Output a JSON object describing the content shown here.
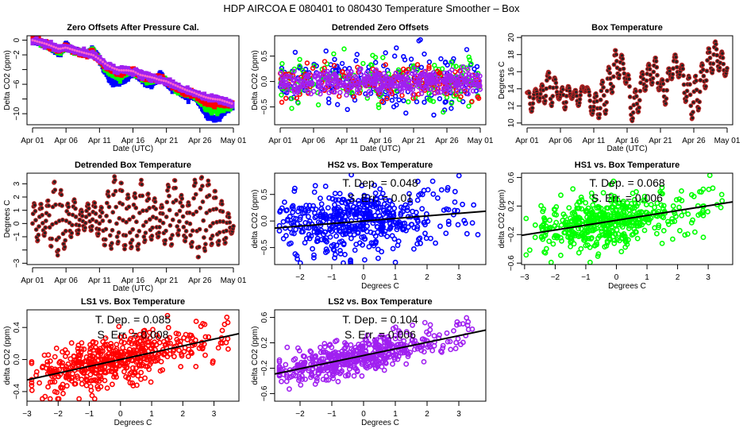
{
  "title": "HDP   AIRCOA E   080401 to 080430   Temperature Smoother – Box",
  "colors": {
    "HS2": "#0000ff",
    "HS1": "#00ff00",
    "LS1": "#ff0000",
    "LS2": "#a020f0",
    "box_temp": "#b22222",
    "fit_line": "#000000"
  },
  "chart_data": [
    {
      "id": "zero-offsets",
      "type": "line",
      "title": "Zero Offsets After Pressure Cal.",
      "xlabel": "Date (UTC)",
      "ylabel": "Delta CO2 (ppm)",
      "xticks": [
        "Apr 01",
        "Apr 06",
        "Apr 11",
        "Apr 16",
        "Apr 21",
        "Apr 26",
        "May 01"
      ],
      "xlim": [
        0,
        30
      ],
      "ylim": [
        -11.5,
        0.6
      ],
      "yticks": [
        0,
        -2,
        -4,
        -6,
        -8,
        -10
      ],
      "ytick_labels": [
        "0",
        "−2",
        "",
        "−6",
        "",
        "−10"
      ],
      "series": [
        {
          "name": "HS2",
          "days": [
            0,
            2,
            4,
            5,
            6,
            8,
            9,
            10,
            11,
            12,
            13,
            14,
            15,
            16,
            17,
            18,
            19,
            20,
            21,
            22,
            23,
            24,
            25,
            26,
            27,
            28,
            29,
            30
          ],
          "values": [
            0,
            -0.6,
            -1.9,
            -0.6,
            -1.4,
            -1.9,
            -1.1,
            -2.7,
            -4.6,
            -5.8,
            -5.6,
            -5.4,
            -4.2,
            -5.2,
            -5.9,
            -6.0,
            -4.6,
            -5.8,
            -6.6,
            -7.1,
            -7.7,
            -7.5,
            -8.7,
            -10.2,
            -10.7,
            -10.4,
            -9.4,
            -9.0
          ]
        },
        {
          "name": "HS1",
          "days": [
            0,
            2,
            4,
            5,
            6,
            8,
            9,
            10,
            11,
            12,
            13,
            14,
            15,
            16,
            17,
            18,
            19,
            20,
            21,
            22,
            23,
            24,
            25,
            26,
            27,
            28,
            29,
            30
          ],
          "values": [
            0,
            -0.6,
            -1.6,
            -0.9,
            -1.4,
            -1.9,
            -1.5,
            -2.7,
            -4.0,
            -4.7,
            -4.9,
            -4.5,
            -4.1,
            -4.9,
            -5.5,
            -5.6,
            -5.0,
            -5.6,
            -6.4,
            -6.9,
            -7.4,
            -7.4,
            -8.3,
            -9.3,
            -9.6,
            -9.5,
            -9.0,
            -8.9
          ]
        },
        {
          "name": "LS1",
          "days": [
            0,
            2,
            4,
            5,
            6,
            8,
            9,
            10,
            11,
            12,
            13,
            14,
            15,
            16,
            17,
            18,
            19,
            20,
            21,
            22,
            23,
            24,
            25,
            26,
            27,
            28,
            29,
            30
          ],
          "values": [
            0.3,
            -0.6,
            -1.4,
            -0.9,
            -1.3,
            -1.9,
            -1.6,
            -2.7,
            -3.7,
            -4.2,
            -4.4,
            -4.2,
            -4.0,
            -4.8,
            -5.2,
            -5.3,
            -5.1,
            -5.5,
            -6.2,
            -6.7,
            -7.2,
            -7.3,
            -7.9,
            -8.5,
            -8.7,
            -8.7,
            -8.7,
            -8.8
          ]
        },
        {
          "name": "LS2",
          "days": [
            0,
            2,
            4,
            5,
            6,
            8,
            9,
            10,
            11,
            12,
            13,
            14,
            15,
            16,
            17,
            18,
            19,
            20,
            21,
            22,
            23,
            24,
            25,
            26,
            27,
            28,
            29,
            30
          ],
          "values": [
            0,
            -0.5,
            -1.2,
            -1.0,
            -1.3,
            -1.8,
            -2.0,
            -2.6,
            -3.3,
            -3.8,
            -4.1,
            -4.1,
            -4.2,
            -4.7,
            -4.9,
            -5.1,
            -5.4,
            -5.6,
            -6.0,
            -6.4,
            -6.8,
            -7.1,
            -7.5,
            -7.8,
            -8.0,
            -8.1,
            -8.4,
            -8.7
          ]
        }
      ]
    },
    {
      "id": "detrended-zero-offsets",
      "type": "scatter",
      "title": "Detrended Zero Offsets",
      "xlabel": "Date (UTC)",
      "ylabel": "Delta CO2 (ppm)",
      "xticks": [
        "Apr 01",
        "Apr 06",
        "Apr 11",
        "Apr 16",
        "Apr 21",
        "Apr 26",
        "May 01"
      ],
      "xlim": [
        0,
        30
      ],
      "ylim": [
        -0.85,
        0.9
      ],
      "yticks": [
        0.5,
        0.0,
        -0.5
      ],
      "ytick_labels": [
        "0.5",
        "0.0",
        "−0.5"
      ],
      "series_names": [
        "HS2",
        "HS1",
        "LS1",
        "LS2"
      ],
      "spread_ppm": [
        0.3,
        0.22,
        0.16,
        0.12
      ]
    },
    {
      "id": "box-temperature",
      "type": "line",
      "title": "Box Temperature",
      "xlabel": "Date (UTC)",
      "ylabel": "Degrees C",
      "xticks": [
        "Apr 01",
        "Apr 06",
        "Apr 11",
        "Apr 16",
        "Apr 21",
        "Apr 26",
        "May 01"
      ],
      "xlim": [
        0,
        30
      ],
      "ylim": [
        9.8,
        20.2
      ],
      "yticks": [
        10,
        12,
        14,
        16,
        18,
        20
      ],
      "ytick_labels": [
        "10",
        "12",
        "14",
        "16",
        "18",
        "20"
      ],
      "days": [
        0,
        0.5,
        1,
        1.5,
        2,
        2.5,
        3,
        3.5,
        4,
        4.5,
        5,
        5.5,
        6,
        6.5,
        7,
        7.5,
        8,
        8.5,
        9,
        9.5,
        10,
        10.5,
        11,
        11.5,
        12,
        12.5,
        13,
        13.5,
        14,
        14.5,
        15,
        15.5,
        16,
        16.5,
        17,
        17.5,
        18,
        18.5,
        19,
        19.5,
        20,
        20.5,
        21,
        21.5,
        22,
        22.5,
        23,
        23.5,
        24,
        24.5,
        25,
        25.5,
        26,
        26.5,
        27,
        27.5,
        28,
        28.5,
        29,
        29.5,
        30
      ],
      "daily_min": [
        13.3,
        10.5,
        12.5,
        12.8,
        12.3,
        11.0,
        14.5,
        10.6,
        14.0,
        13.0,
        12.6,
        10.6,
        13.0,
        12.7,
        13.0,
        11.6,
        12.5,
        13.4,
        14.0,
        11.0,
        11.0,
        10.7,
        10.4,
        11.2,
        11.0,
        13.5,
        13.5,
        15.0,
        15.5,
        15.4,
        14.0,
        10.2,
        10.3,
        10.1,
        12.8,
        13.2,
        14.5,
        14.1,
        15.0,
        14.2,
        13.5,
        12.0,
        12.3,
        14.5,
        16.0,
        15.3,
        15.4,
        13.0,
        12.0,
        10.4,
        10.5,
        10.3,
        13.0,
        13.7,
        14.5,
        15.7,
        16.0,
        16.5,
        15.8,
        15.1,
        16.0
      ],
      "daily_max": [
        13.8,
        13.5,
        13.8,
        14.1,
        14.5,
        14.5,
        16.4,
        15.5,
        16.1,
        14.0,
        13.8,
        14.5,
        14.7,
        13.8,
        13.9,
        13.8,
        14.0,
        14.5,
        14.5,
        13.0,
        12.8,
        14.0,
        13.9,
        15.8,
        16.5,
        16.6,
        18.8,
        18.3,
        18.7,
        17.0,
        16.9,
        13.8,
        13.9,
        13.9,
        15.8,
        16.1,
        17.0,
        16.8,
        17.8,
        17.5,
        15.0,
        15.2,
        16.5,
        16.3,
        18.5,
        17.4,
        17.1,
        16.5,
        15.5,
        15.5,
        15.6,
        15.5,
        17.0,
        16.9,
        19.0,
        18.5,
        20.0,
        19.0,
        19.0,
        17.5,
        16.8
      ]
    },
    {
      "id": "detrended-box-temperature",
      "type": "line",
      "title": "Detrended Box Temperature",
      "xlabel": "Date (UTC)",
      "ylabel": "Degrees C",
      "xticks": [
        "Apr 01",
        "Apr 06",
        "Apr 11",
        "Apr 16",
        "Apr 21",
        "Apr 26",
        "May 01"
      ],
      "xlim": [
        0,
        30
      ],
      "ylim": [
        -3.1,
        3.8
      ],
      "yticks": [
        3,
        2,
        1,
        0,
        -1,
        -2,
        -3
      ],
      "ytick_labels": [
        "3",
        "2",
        "1",
        "0",
        "−1",
        "",
        "−3"
      ],
      "days": [
        0,
        1,
        2,
        3,
        4,
        5,
        6,
        7,
        8,
        9,
        10,
        11,
        12,
        13,
        14,
        15,
        16,
        17,
        18,
        19,
        20,
        21,
        22,
        23,
        24,
        25,
        26,
        27,
        28,
        29,
        30
      ],
      "daily_min": [
        -1.5,
        -1.3,
        -0.8,
        -2.1,
        -2.5,
        -1.7,
        -0.8,
        -0.8,
        -0.4,
        -0.6,
        -1.0,
        -1.9,
        -1.9,
        -1.4,
        -2.1,
        -1.8,
        -2.0,
        -1.2,
        -1.2,
        -1.0,
        -1.7,
        -1.7,
        -0.6,
        -1.6,
        -1.8,
        -2.9,
        -1.8,
        -1.6,
        -1.6,
        -1.5,
        -0.5
      ],
      "daily_max": [
        1.5,
        1.6,
        1.2,
        3.3,
        2.9,
        1.3,
        2.1,
        0.9,
        1.4,
        1.8,
        1.0,
        2.0,
        3.6,
        3.4,
        2.3,
        1.8,
        3.6,
        2.3,
        2.2,
        0.9,
        2.7,
        3.6,
        2.5,
        1.0,
        3.2,
        3.6,
        3.4,
        2.7,
        1.9,
        1.0,
        0.1
      ]
    },
    {
      "id": "hs2-vs-box",
      "type": "scatter",
      "title": "HS2 vs. Box Temperature",
      "series_name": "HS2",
      "xlabel": "Degrees C",
      "ylabel": "delta CO2 (ppm)",
      "xlim": [
        -2.8,
        3.85
      ],
      "ylim": [
        -0.82,
        0.9
      ],
      "xticks": [
        -2,
        -1,
        0,
        1,
        2,
        3
      ],
      "xtick_labels": [
        "−2",
        "−1",
        "0",
        "1",
        "2",
        "3"
      ],
      "yticks": [
        0.5,
        0.0,
        -0.5
      ],
      "ytick_labels": [
        "0.5",
        "0.0",
        "−0.5"
      ],
      "slope": 0.048,
      "noise": 0.28,
      "annotation": {
        "tdep": "T. Dep. =  0.048",
        "serr": "S. Err. =  0.01"
      }
    },
    {
      "id": "hs1-vs-box",
      "type": "scatter",
      "title": "HS1 vs. Box Temperature",
      "series_name": "HS1",
      "xlabel": "Degrees C",
      "ylabel": "delta CO2 (ppm)",
      "xlim": [
        -3.1,
        3.8
      ],
      "ylim": [
        -0.62,
        0.66
      ],
      "xticks": [
        -3,
        -2,
        -1,
        0,
        1,
        2,
        3
      ],
      "xtick_labels": [
        "−3",
        "−2",
        "−1",
        "0",
        "1",
        "2",
        "3"
      ],
      "yticks": [
        0.6,
        0.2,
        -0.2,
        -0.6
      ],
      "ytick_labels": [
        "0.6",
        "0.2",
        "−0.2",
        "−0.6"
      ],
      "slope": 0.068,
      "noise": 0.17,
      "annotation": {
        "tdep": "T. Dep. =  0.068",
        "serr": "S. Err. =  0.006"
      }
    },
    {
      "id": "ls1-vs-box",
      "type": "scatter",
      "title": "LS1 vs. Box Temperature",
      "series_name": "LS1",
      "xlabel": "Degrees C",
      "ylabel": "delta CO2 (ppm)",
      "xlim": [
        -3.0,
        3.8
      ],
      "ylim": [
        -0.52,
        0.62
      ],
      "xticks": [
        -3,
        -2,
        -1,
        0,
        1,
        2,
        3
      ],
      "xtick_labels": [
        "−3",
        "−2",
        "−1",
        "0",
        "1",
        "2",
        "3"
      ],
      "yticks": [
        0.4,
        0.0,
        -0.4
      ],
      "ytick_labels": [
        "0.4",
        "0.0",
        "−0.4"
      ],
      "slope": 0.085,
      "noise": 0.14,
      "annotation": {
        "tdep": "T. Dep. =  0.085",
        "serr": "S. Err. =  0.008"
      }
    },
    {
      "id": "ls2-vs-box",
      "type": "scatter",
      "title": "LS2 vs. Box Temperature",
      "series_name": "LS2",
      "xlabel": "Degrees C",
      "ylabel": "delta CO2 (ppm)",
      "xlim": [
        -2.8,
        3.85
      ],
      "ylim": [
        -0.72,
        0.72
      ],
      "xticks": [
        -2,
        -1,
        0,
        1,
        2,
        3
      ],
      "xtick_labels": [
        "−2",
        "−1",
        "0",
        "1",
        "2",
        "3"
      ],
      "yticks": [
        0.6,
        0.2,
        -0.2,
        -0.6
      ],
      "ytick_labels": [
        "0.6",
        "0.2",
        "−0.2",
        "−0.6"
      ],
      "slope": 0.104,
      "noise": 0.13,
      "annotation": {
        "tdep": "T. Dep. =  0.104",
        "serr": "S. Err. =  0.006"
      }
    }
  ]
}
